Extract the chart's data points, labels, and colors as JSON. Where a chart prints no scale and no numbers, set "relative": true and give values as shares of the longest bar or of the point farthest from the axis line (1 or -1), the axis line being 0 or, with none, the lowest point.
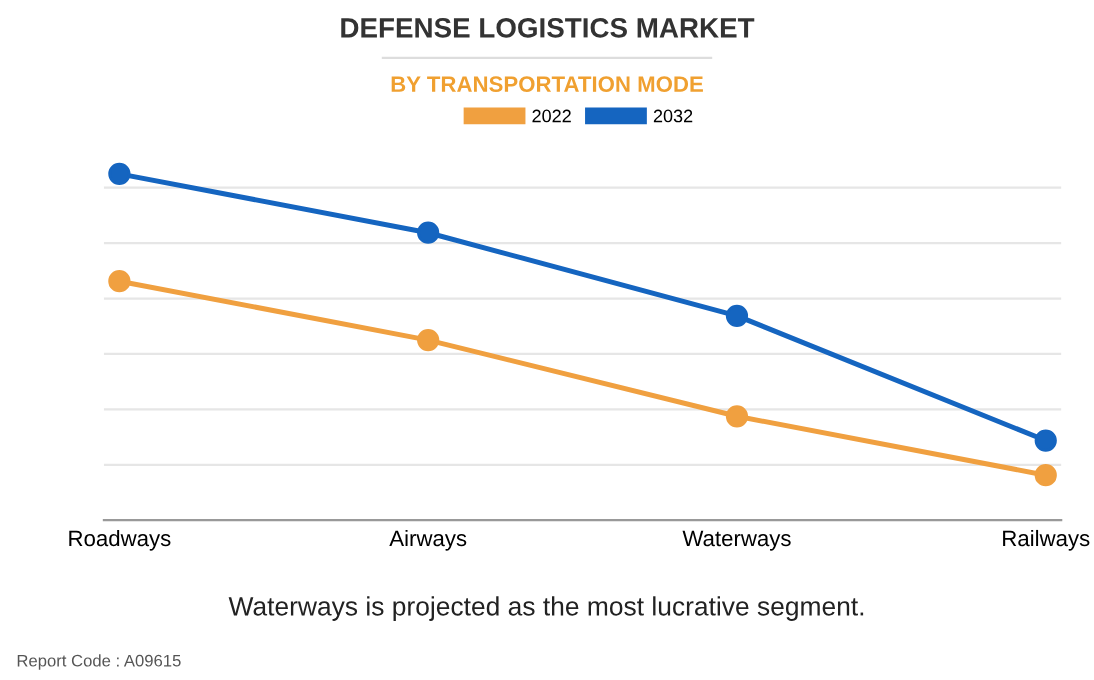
{
  "chart_data": {
    "type": "line",
    "title": "DEFENSE LOGISTICS MARKET",
    "subtitle": "BY TRANSPORTATION MODE",
    "categories": [
      "Roadways",
      "Airways",
      "Waterways",
      "Railways"
    ],
    "series": [
      {
        "name": "2022",
        "color": "#f0a040",
        "values": [
          0.69,
          0.52,
          0.3,
          0.13
        ]
      },
      {
        "name": "2032",
        "color": "#1565c0",
        "values": [
          1,
          0.83,
          0.59,
          0.23
        ]
      }
    ],
    "relative": true,
    "grid": "y",
    "legend": "top",
    "marker": "circle",
    "annotations": [
      "Waterways is projected as the most lucrative segment.",
      "Report Code : A09615"
    ]
  }
}
